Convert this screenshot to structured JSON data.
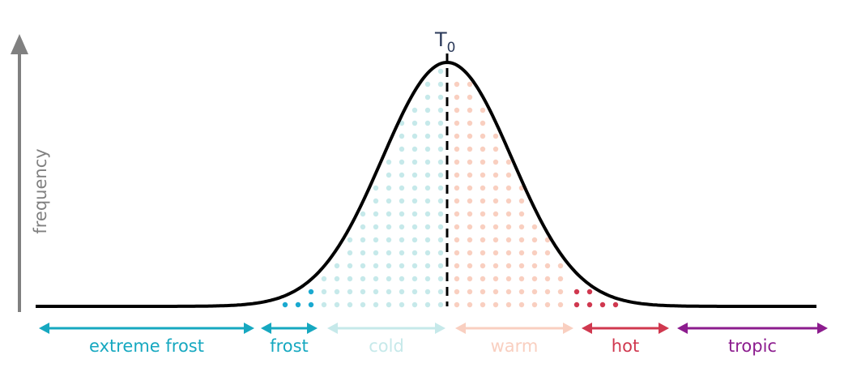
{
  "y_axis_label": "frequency",
  "peak_label": {
    "main": "T",
    "sub": "0"
  },
  "curve_color": "#000000",
  "axis_color": "#808080",
  "ranges": [
    {
      "id": "extreme-frost",
      "label": "extreme frost",
      "color": "#16a8c0"
    },
    {
      "id": "frost",
      "label": "frost",
      "color": "#16a8c0"
    },
    {
      "id": "cold",
      "label": "cold",
      "color": "#c6e9ea"
    },
    {
      "id": "warm",
      "label": "warm",
      "color": "#f9cfc0"
    },
    {
      "id": "hot",
      "label": "hot",
      "color": "#d0384f"
    },
    {
      "id": "tropic",
      "label": "tropic",
      "color": "#8c1c8e"
    }
  ],
  "dot_colors": {
    "frost": "#1aa9d0",
    "cold": "#c6e9ea",
    "warm": "#f9cfc0",
    "hot": "#d0384f"
  }
}
